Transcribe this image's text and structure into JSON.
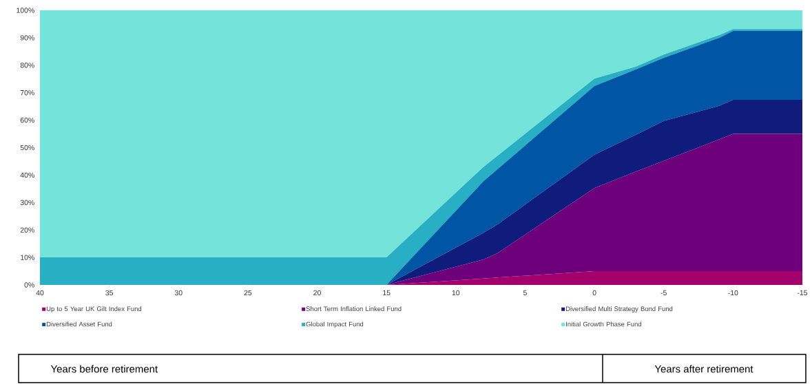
{
  "chart_data": {
    "type": "area",
    "stacked": true,
    "legend": "bottom",
    "xlim": [
      40,
      -15
    ],
    "xticks": [
      40,
      35,
      30,
      25,
      20,
      15,
      10,
      5,
      0,
      -5,
      -10,
      -15
    ],
    "ylim": [
      0,
      100
    ],
    "yticks": [
      {
        "value": 0,
        "label": "0%"
      },
      {
        "value": 10,
        "label": "10%"
      },
      {
        "value": 20,
        "label": "20%"
      },
      {
        "value": 30,
        "label": "30%"
      },
      {
        "value": 40,
        "label": "40%"
      },
      {
        "value": 50,
        "label": "50%"
      },
      {
        "value": 60,
        "label": "60%"
      },
      {
        "value": 70,
        "label": "70%"
      },
      {
        "value": 80,
        "label": "80%"
      },
      {
        "value": 90,
        "label": "90%"
      },
      {
        "value": 100,
        "label": "100%"
      }
    ],
    "x": [
      40,
      15,
      8,
      7,
      0,
      -3,
      -5,
      -9,
      -10,
      -15
    ],
    "series": [
      {
        "name": "Up to 5 Year UK Gilt Index Fund",
        "color": "#a3006e",
        "values": [
          0,
          0,
          2.3,
          2.7,
          5,
          5,
          5,
          5,
          5,
          5
        ]
      },
      {
        "name": "Short Term Inflation Linked Fund",
        "color": "#6e007c",
        "values": [
          0,
          0,
          7,
          8.8,
          30.3,
          36.3,
          40.2,
          48,
          50,
          50
        ]
      },
      {
        "name": "Diversified Multi Strategy Bond Fund",
        "color": "#101c7c",
        "values": [
          0,
          0,
          9.7,
          10.5,
          12.1,
          13.4,
          14.5,
          12.2,
          12.4,
          12.4
        ]
      },
      {
        "name": "Diversified Asset Fund",
        "color": "#0055a5",
        "values": [
          0,
          0,
          18.8,
          20.1,
          25,
          23.8,
          23,
          24.8,
          25.1,
          25.1
        ]
      },
      {
        "name": "Global Impact Fund",
        "color": "#28afc3",
        "values": [
          10,
          10,
          5.2,
          4.9,
          2.7,
          1,
          1.2,
          1,
          0.7,
          0.7
        ]
      },
      {
        "name": "Initial Growth Phase Fund",
        "color": "#74e3d9",
        "values": [
          90,
          90,
          57,
          53,
          24.9,
          20.5,
          16.3,
          9,
          6.8,
          6.8
        ]
      }
    ],
    "annotations": [
      "Years before retirement",
      "Years after retirement"
    ]
  }
}
